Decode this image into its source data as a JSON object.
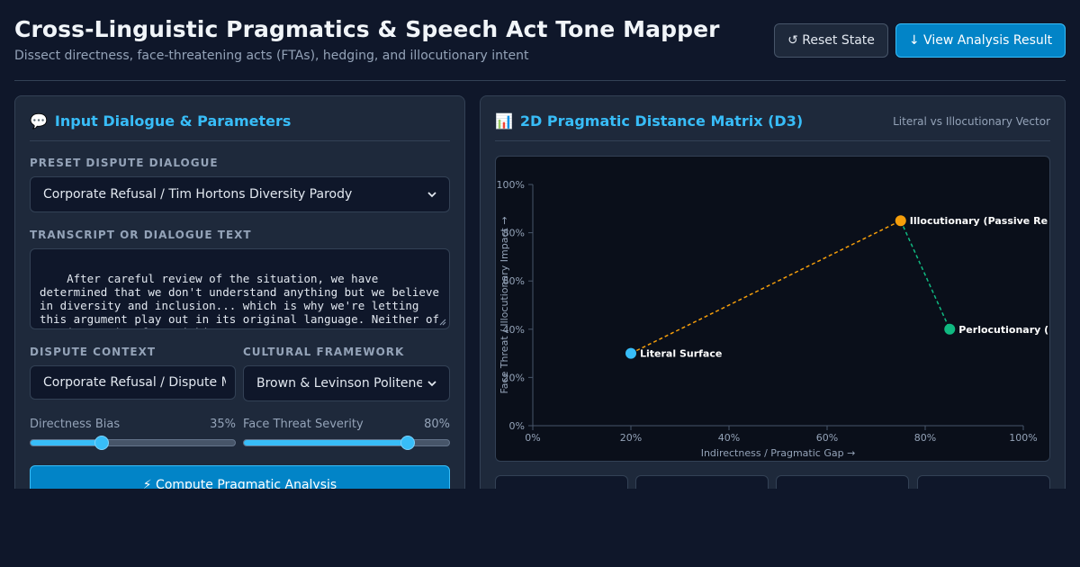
{
  "header": {
    "title": "Cross-Linguistic Pragmatics & Speech Act Tone Mapper",
    "subtitle": "Dissect directness, face-threatening acts (FTAs), hedging, and illocutionary intent",
    "reset_label": "↺ Reset State",
    "view_label": "↓ View Analysis Result"
  },
  "input_panel": {
    "icon": "speech-bubble-icon",
    "icon_glyph": "💬",
    "title": "Input Dialogue & Parameters",
    "preset_label": "Preset Dispute Dialogue",
    "preset_value": "Corporate Refusal / Tim Hortons Diversity Parody",
    "transcript_label": "Transcript or Dialogue Text",
    "transcript_text": "After careful review of the situation, we have determined that we don't understand anything but we believe in diversity and inclusion... which is why we're letting this argument play out in its original language. Neither of you is getting free Timbits.",
    "context_label": "Dispute Context",
    "context_value": "Corporate Refusal / Dispute Mediation",
    "framework_label": "Cultural Framework",
    "framework_value": "Brown & Levinson Politeness",
    "directness": {
      "label": "Directness Bias",
      "value": 35,
      "display": "35%"
    },
    "face_threat": {
      "label": "Face Threat Severity",
      "value": 80,
      "display": "80%"
    },
    "compute_label": "⚡ Compute Pragmatic Analysis"
  },
  "chart_panel": {
    "icon": "bar-chart-icon",
    "icon_glyph": "📊",
    "title": "2D Pragmatic Distance Matrix (D3)",
    "note": "Literal vs Illocutionary Vector"
  },
  "chart_data": {
    "type": "scatter",
    "xlabel": "Indirectness / Pragmatic Gap →",
    "ylabel": "Face Threat / Illocutionary Impact →",
    "xlim": [
      0,
      100
    ],
    "ylim": [
      0,
      100
    ],
    "x_ticks": [
      "0%",
      "20%",
      "40%",
      "60%",
      "80%",
      "100%"
    ],
    "y_ticks": [
      "0%",
      "20%",
      "40%",
      "60%",
      "80%",
      "100%"
    ],
    "points": [
      {
        "name": "Literal Surface",
        "x": 20,
        "y": 30,
        "color": "#38bdf8"
      },
      {
        "name": "Illocutionary (Passive Re",
        "x": 75,
        "y": 85,
        "color": "#f59e0b"
      },
      {
        "name": "Perlocutionary (",
        "x": 85,
        "y": 40,
        "color": "#10b981"
      }
    ],
    "links": [
      {
        "from": 0,
        "to": 1,
        "color": "#f59e0b"
      },
      {
        "from": 1,
        "to": 2,
        "color": "#10b981"
      }
    ]
  },
  "colors": {
    "accent": "#38bdf8",
    "primary_button": "#0284c7",
    "background": "#0f172a",
    "panel": "#1e293b"
  }
}
